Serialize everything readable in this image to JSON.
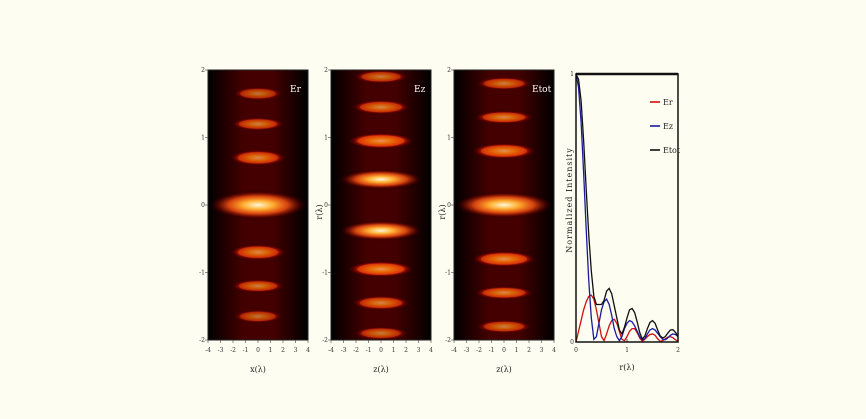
{
  "chart_data": [
    {
      "type": "heatmap",
      "panel_label": "Er",
      "xlabel": "x(λ)",
      "ylabel": "",
      "xlim": [
        -4,
        4
      ],
      "ylim": [
        -2,
        2
      ],
      "x_ticks": [
        "-4",
        "-3",
        "-2",
        "-1",
        "0",
        "1",
        "2",
        "3",
        "4"
      ],
      "y_ticks": [
        "2",
        "1",
        "0",
        "-1",
        "-2"
      ],
      "colormap": [
        "#000000",
        "#5a0000",
        "#b01010",
        "#e84a10",
        "#ffae30",
        "#fff8d8"
      ],
      "field_type": "er",
      "lobes": [
        {
          "z": 0.0,
          "x_width": 1.0,
          "intensity": 1.0,
          "z_width": 0.22
        },
        {
          "z": 0.7,
          "x_width": 0.8,
          "intensity": 0.4,
          "z_width": 0.12
        },
        {
          "z": -0.7,
          "x_width": 0.8,
          "intensity": 0.4,
          "z_width": 0.12
        },
        {
          "z": 1.2,
          "x_width": 0.8,
          "intensity": 0.3,
          "z_width": 0.1
        },
        {
          "z": -1.2,
          "x_width": 0.8,
          "intensity": 0.3,
          "z_width": 0.1
        },
        {
          "z": 1.65,
          "x_width": 0.8,
          "intensity": 0.2,
          "z_width": 0.1
        },
        {
          "z": -1.65,
          "x_width": 0.8,
          "intensity": 0.2,
          "z_width": 0.1
        }
      ]
    },
    {
      "type": "heatmap",
      "panel_label": "Ez",
      "xlabel": "z(λ)",
      "ylabel": "r(λ)",
      "xlim": [
        -4,
        4
      ],
      "ylim": [
        -2,
        2
      ],
      "x_ticks": [
        "-4",
        "-3",
        "-2",
        "-1",
        "0",
        "1",
        "2",
        "3",
        "4"
      ],
      "y_ticks": [
        "2",
        "1",
        "0",
        "-1",
        "-2"
      ],
      "colormap": [
        "#000000",
        "#5a0000",
        "#b01010",
        "#e84a10",
        "#ffae30",
        "#fff8d8"
      ],
      "field_type": "ez",
      "lobes": [
        {
          "z": 0.38,
          "x_width": 0.85,
          "intensity": 1.0,
          "z_width": 0.15
        },
        {
          "z": -0.38,
          "x_width": 0.85,
          "intensity": 1.0,
          "z_width": 0.15
        },
        {
          "z": 0.95,
          "x_width": 0.85,
          "intensity": 0.55,
          "z_width": 0.12
        },
        {
          "z": -0.95,
          "x_width": 0.85,
          "intensity": 0.55,
          "z_width": 0.12
        },
        {
          "z": 1.45,
          "x_width": 0.85,
          "intensity": 0.35,
          "z_width": 0.11
        },
        {
          "z": -1.45,
          "x_width": 0.85,
          "intensity": 0.35,
          "z_width": 0.11
        },
        {
          "z": 1.9,
          "x_width": 0.85,
          "intensity": 0.25,
          "z_width": 0.1
        },
        {
          "z": -1.9,
          "x_width": 0.85,
          "intensity": 0.25,
          "z_width": 0.1
        }
      ]
    },
    {
      "type": "heatmap",
      "panel_label": "Etot",
      "xlabel": "z(λ)",
      "ylabel": "r(λ)",
      "xlim": [
        -4,
        4
      ],
      "ylim": [
        -2,
        2
      ],
      "x_ticks": [
        "-4",
        "-3",
        "-2",
        "-1",
        "0",
        "1",
        "2",
        "3",
        "4"
      ],
      "y_ticks": [
        "2",
        "1",
        "0",
        "-1",
        "-2"
      ],
      "colormap": [
        "#000000",
        "#5a0000",
        "#b01010",
        "#e84a10",
        "#ffae30",
        "#fff8d8"
      ],
      "field_type": "etot",
      "lobes": [
        {
          "z": 0.0,
          "x_width": 1.0,
          "intensity": 1.0,
          "z_width": 0.2
        },
        {
          "z": 0.8,
          "x_width": 0.85,
          "intensity": 0.5,
          "z_width": 0.12
        },
        {
          "z": -0.8,
          "x_width": 0.85,
          "intensity": 0.5,
          "z_width": 0.12
        },
        {
          "z": 1.3,
          "x_width": 0.85,
          "intensity": 0.38,
          "z_width": 0.1
        },
        {
          "z": -1.3,
          "x_width": 0.85,
          "intensity": 0.38,
          "z_width": 0.1
        },
        {
          "z": 1.8,
          "x_width": 0.85,
          "intensity": 0.28,
          "z_width": 0.1
        },
        {
          "z": -1.8,
          "x_width": 0.85,
          "intensity": 0.28,
          "z_width": 0.1
        }
      ]
    },
    {
      "type": "line",
      "xlabel": "r(λ)",
      "ylabel": "Normalized Intensity",
      "xlim": [
        0,
        2
      ],
      "ylim": [
        0,
        1
      ],
      "x_ticks": [
        "0",
        "1",
        "2"
      ],
      "y_ticks": [
        "0",
        "1"
      ],
      "legend_position": "top-right",
      "x": [
        0.0,
        0.05,
        0.1,
        0.15,
        0.2,
        0.25,
        0.3,
        0.35,
        0.4,
        0.45,
        0.5,
        0.55,
        0.6,
        0.65,
        0.7,
        0.75,
        0.8,
        0.85,
        0.9,
        0.95,
        1.0,
        1.05,
        1.1,
        1.15,
        1.2,
        1.25,
        1.3,
        1.35,
        1.4,
        1.45,
        1.5,
        1.55,
        1.6,
        1.65,
        1.7,
        1.75,
        1.8,
        1.85,
        1.9,
        1.95,
        2.0
      ],
      "series": [
        {
          "name": "Er",
          "color": "#d01010",
          "values": [
            0.0,
            0.04,
            0.08,
            0.12,
            0.15,
            0.17,
            0.175,
            0.16,
            0.12,
            0.07,
            0.02,
            0.005,
            0.03,
            0.06,
            0.08,
            0.085,
            0.07,
            0.04,
            0.01,
            0.005,
            0.02,
            0.04,
            0.05,
            0.05,
            0.035,
            0.015,
            0.003,
            0.01,
            0.02,
            0.028,
            0.03,
            0.025,
            0.012,
            0.003,
            0.005,
            0.012,
            0.018,
            0.02,
            0.016,
            0.008,
            0.003
          ]
        },
        {
          "name": "Ez",
          "color": "#1a1aa0",
          "values": [
            1.0,
            0.95,
            0.82,
            0.63,
            0.42,
            0.23,
            0.09,
            0.01,
            0.02,
            0.07,
            0.12,
            0.15,
            0.16,
            0.14,
            0.1,
            0.05,
            0.02,
            0.005,
            0.02,
            0.05,
            0.07,
            0.08,
            0.075,
            0.06,
            0.04,
            0.02,
            0.008,
            0.012,
            0.03,
            0.045,
            0.05,
            0.045,
            0.033,
            0.02,
            0.01,
            0.008,
            0.015,
            0.025,
            0.03,
            0.028,
            0.02
          ]
        },
        {
          "name": "Etot",
          "color": "#101010",
          "values": [
            1.0,
            0.98,
            0.9,
            0.75,
            0.57,
            0.4,
            0.265,
            0.17,
            0.14,
            0.14,
            0.14,
            0.155,
            0.19,
            0.2,
            0.18,
            0.135,
            0.09,
            0.045,
            0.03,
            0.055,
            0.09,
            0.12,
            0.125,
            0.11,
            0.075,
            0.035,
            0.011,
            0.022,
            0.05,
            0.073,
            0.08,
            0.07,
            0.045,
            0.023,
            0.015,
            0.02,
            0.033,
            0.045,
            0.046,
            0.036,
            0.023
          ]
        }
      ]
    }
  ]
}
